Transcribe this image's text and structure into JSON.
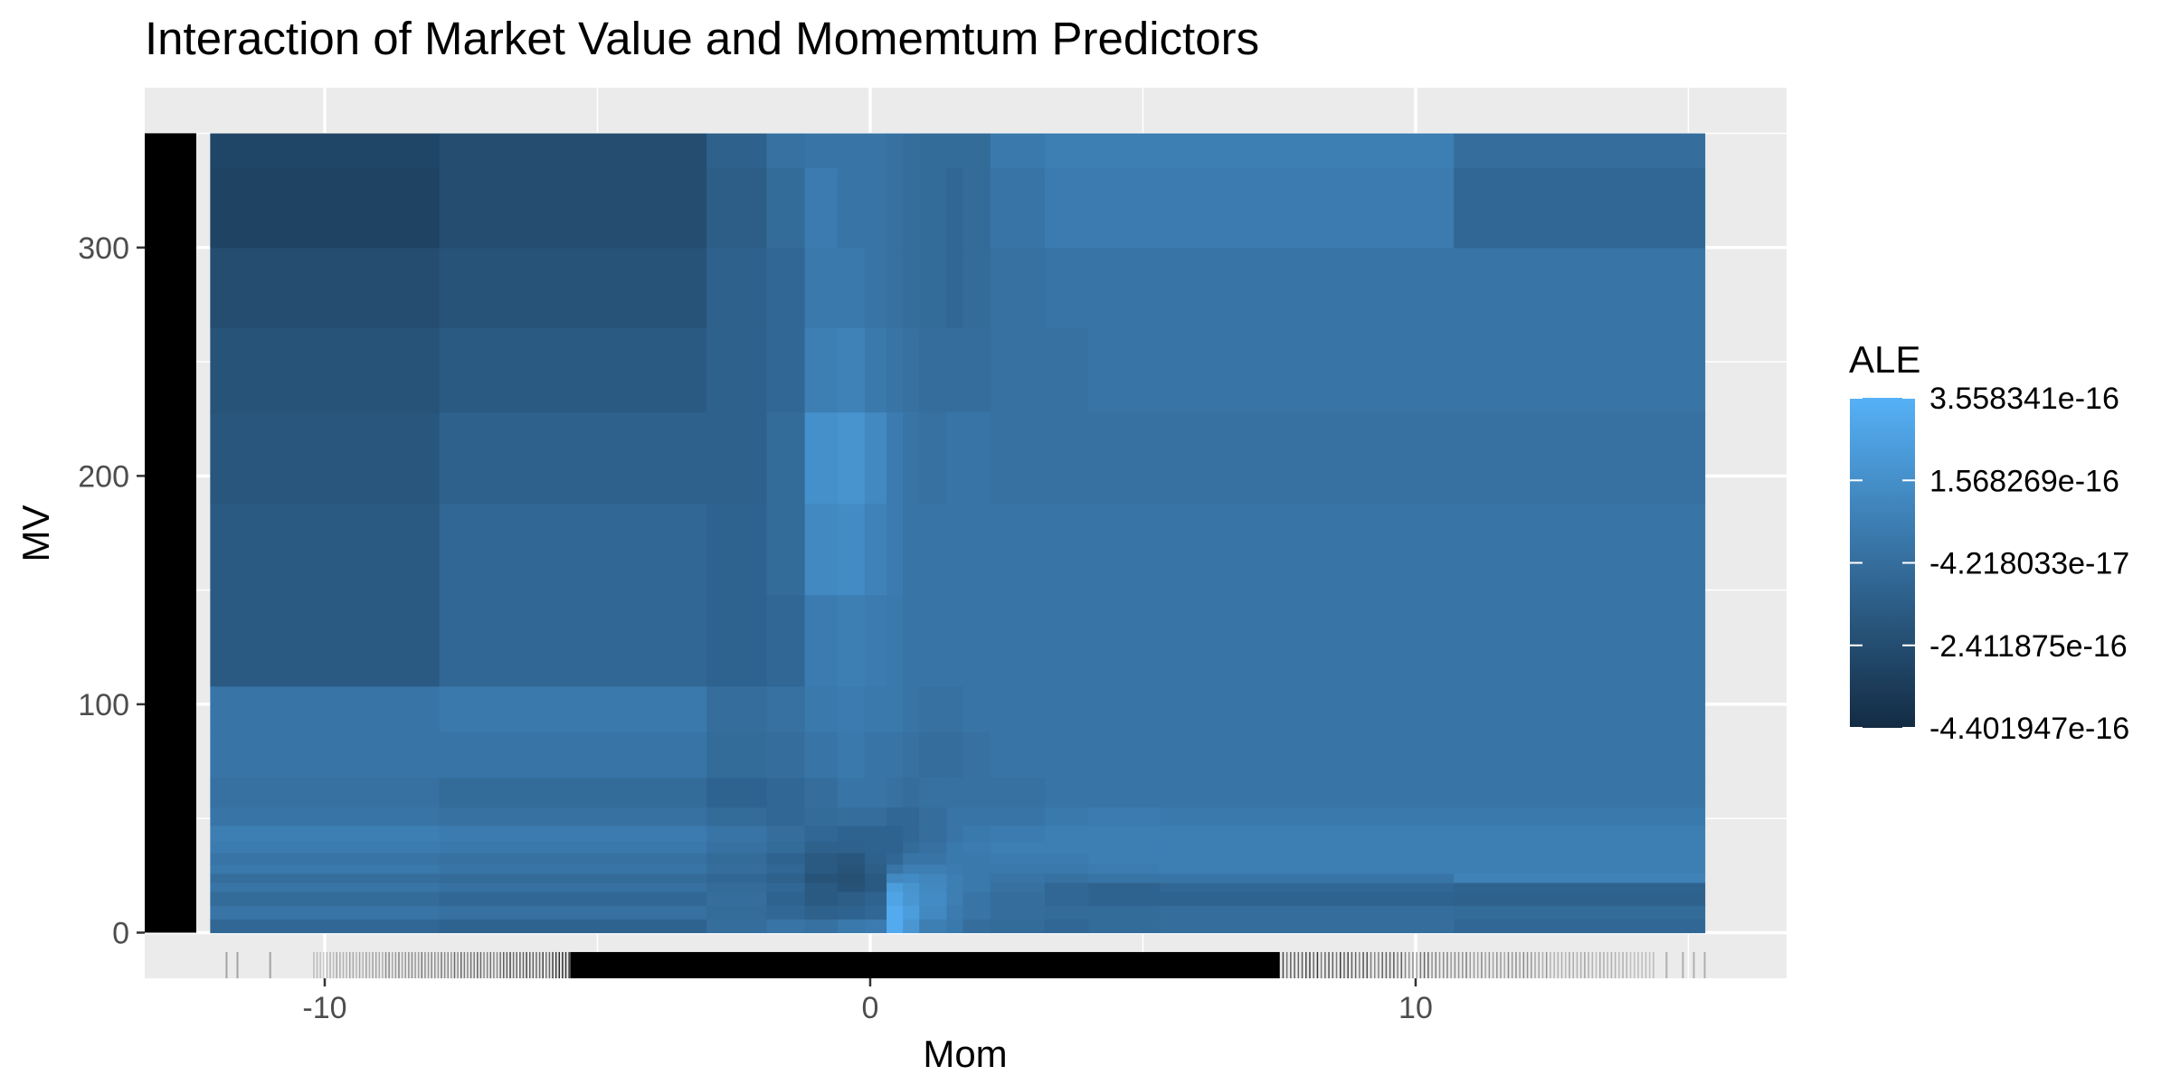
{
  "chart_data": {
    "type": "heatmap",
    "title": "Interaction of Market Value and Momemtum Predictors",
    "xlabel": "Mom",
    "ylabel": "MV",
    "xlim": [
      -13.3,
      16.8
    ],
    "ylim": [
      -20,
      370
    ],
    "x_ticks": [
      -10,
      0,
      10
    ],
    "x_tick_labels": [
      "-10",
      "0",
      "10"
    ],
    "y_ticks": [
      0,
      100,
      200,
      300
    ],
    "y_tick_labels": [
      "0",
      "100",
      "200",
      "300"
    ],
    "grid": true,
    "legend": {
      "title": "ALE",
      "position": "right",
      "labels": [
        "3.558341e-16",
        "1.568269e-16",
        "-4.218033e-17",
        "-2.411875e-16",
        "-4.401947e-16"
      ],
      "values": [
        3.558341e-16,
        1.568269e-16,
        -4.218033e-17,
        -2.411875e-16,
        -4.401947e-16
      ],
      "low_color": "#132B43",
      "high_color": "#56B1F7"
    },
    "x_bins": [
      -12.1,
      -7.9,
      -3.0,
      -1.9,
      -1.2,
      -0.6,
      -0.1,
      0.3,
      0.6,
      0.9,
      1.4,
      1.7,
      2.2,
      3.2,
      4.0,
      5.3,
      10.7,
      15.3
    ],
    "y_bins": [
      0,
      6,
      12,
      18,
      22,
      26,
      30,
      35,
      40,
      47,
      55,
      68,
      88,
      108,
      148,
      188,
      228,
      265,
      300,
      335,
      350
    ],
    "z_levels": [
      [
        0.45,
        0.42,
        0.5,
        0.55,
        0.52,
        0.58,
        0.6,
        0.95,
        0.8,
        0.62,
        0.58,
        0.5,
        0.48,
        0.45,
        0.48,
        0.5,
        0.45
      ],
      [
        0.55,
        0.52,
        0.48,
        0.45,
        0.4,
        0.42,
        0.45,
        0.95,
        0.85,
        0.7,
        0.6,
        0.55,
        0.5,
        0.48,
        0.48,
        0.5,
        0.48
      ],
      [
        0.48,
        0.45,
        0.5,
        0.42,
        0.35,
        0.38,
        0.42,
        0.9,
        0.8,
        0.72,
        0.62,
        0.55,
        0.5,
        0.45,
        0.42,
        0.42,
        0.4
      ],
      [
        0.55,
        0.52,
        0.48,
        0.45,
        0.35,
        0.3,
        0.35,
        0.85,
        0.78,
        0.7,
        0.62,
        0.58,
        0.52,
        0.45,
        0.42,
        0.45,
        0.42
      ],
      [
        0.5,
        0.48,
        0.45,
        0.4,
        0.3,
        0.28,
        0.35,
        0.7,
        0.72,
        0.68,
        0.62,
        0.58,
        0.55,
        0.52,
        0.55,
        0.55,
        0.65
      ],
      [
        0.58,
        0.55,
        0.5,
        0.45,
        0.35,
        0.3,
        0.38,
        0.55,
        0.62,
        0.62,
        0.6,
        0.58,
        0.58,
        0.58,
        0.6,
        0.62,
        0.62
      ],
      [
        0.55,
        0.52,
        0.48,
        0.42,
        0.35,
        0.32,
        0.4,
        0.45,
        0.55,
        0.55,
        0.58,
        0.58,
        0.6,
        0.6,
        0.62,
        0.62,
        0.62
      ],
      [
        0.6,
        0.58,
        0.52,
        0.48,
        0.4,
        0.4,
        0.42,
        0.42,
        0.48,
        0.52,
        0.58,
        0.6,
        0.62,
        0.62,
        0.62,
        0.62,
        0.62
      ],
      [
        0.62,
        0.6,
        0.55,
        0.5,
        0.45,
        0.42,
        0.42,
        0.42,
        0.45,
        0.5,
        0.55,
        0.58,
        0.6,
        0.62,
        0.62,
        0.62,
        0.62
      ],
      [
        0.55,
        0.52,
        0.48,
        0.45,
        0.48,
        0.5,
        0.5,
        0.45,
        0.45,
        0.5,
        0.55,
        0.55,
        0.55,
        0.58,
        0.6,
        0.58,
        0.58
      ],
      [
        0.52,
        0.48,
        0.42,
        0.45,
        0.5,
        0.55,
        0.55,
        0.52,
        0.5,
        0.52,
        0.52,
        0.52,
        0.52,
        0.55,
        0.55,
        0.55,
        0.55
      ],
      [
        0.55,
        0.55,
        0.48,
        0.5,
        0.55,
        0.58,
        0.55,
        0.55,
        0.52,
        0.5,
        0.5,
        0.52,
        0.55,
        0.55,
        0.55,
        0.55,
        0.55
      ],
      [
        0.55,
        0.58,
        0.5,
        0.52,
        0.58,
        0.6,
        0.58,
        0.58,
        0.55,
        0.52,
        0.52,
        0.55,
        0.55,
        0.55,
        0.55,
        0.55,
        0.55
      ],
      [
        0.35,
        0.45,
        0.42,
        0.45,
        0.6,
        0.62,
        0.6,
        0.58,
        0.55,
        0.55,
        0.55,
        0.55,
        0.55,
        0.55,
        0.55,
        0.55,
        0.55
      ],
      [
        0.35,
        0.45,
        0.42,
        0.48,
        0.7,
        0.72,
        0.65,
        0.6,
        0.55,
        0.55,
        0.55,
        0.55,
        0.55,
        0.55,
        0.55,
        0.55,
        0.55
      ],
      [
        0.32,
        0.4,
        0.4,
        0.48,
        0.75,
        0.78,
        0.7,
        0.6,
        0.55,
        0.52,
        0.55,
        0.55,
        0.52,
        0.52,
        0.52,
        0.52,
        0.52
      ],
      [
        0.3,
        0.35,
        0.4,
        0.45,
        0.62,
        0.65,
        0.58,
        0.55,
        0.52,
        0.5,
        0.5,
        0.5,
        0.52,
        0.52,
        0.55,
        0.55,
        0.55
      ],
      [
        0.25,
        0.3,
        0.4,
        0.45,
        0.58,
        0.58,
        0.55,
        0.52,
        0.5,
        0.48,
        0.45,
        0.48,
        0.52,
        0.55,
        0.55,
        0.55,
        0.55
      ],
      [
        0.18,
        0.25,
        0.38,
        0.48,
        0.6,
        0.55,
        0.55,
        0.52,
        0.5,
        0.48,
        0.45,
        0.48,
        0.55,
        0.6,
        0.6,
        0.6,
        0.45
      ],
      [
        0.2,
        0.25,
        0.4,
        0.52,
        0.55,
        0.55,
        0.55,
        0.52,
        0.5,
        0.48,
        0.48,
        0.48,
        0.58,
        0.62,
        0.62,
        0.62,
        0.5
      ]
    ]
  }
}
